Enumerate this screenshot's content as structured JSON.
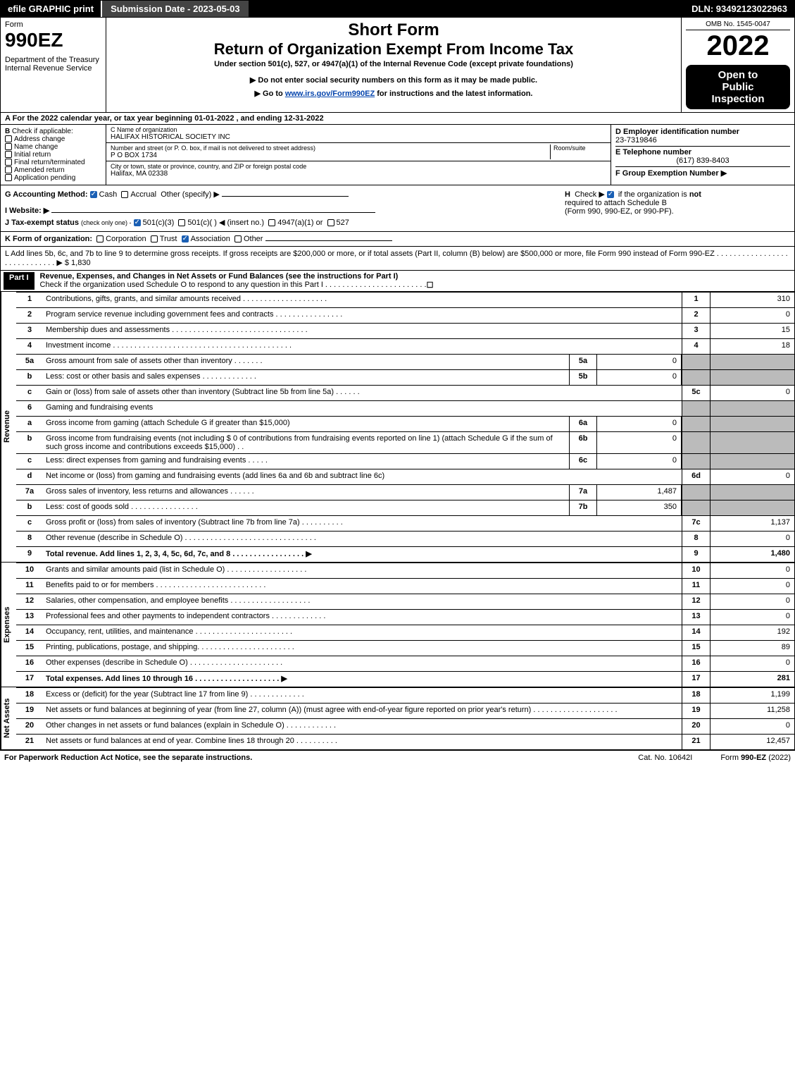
{
  "topbar": {
    "efile": "efile GRAPHIC print",
    "submission": "Submission Date - 2023-05-03",
    "dln": "DLN: 93492123022963"
  },
  "header": {
    "form_label": "Form",
    "form_no": "990EZ",
    "dept1": "Department of the Treasury",
    "dept2": "Internal Revenue Service",
    "short_form": "Short Form",
    "return_title": "Return of Organization Exempt From Income Tax",
    "subtitle": "Under section 501(c), 527, or 4947(a)(1) of the Internal Revenue Code (except private foundations)",
    "note1": "▶ Do not enter social security numbers on this form as it may be made public.",
    "note2_pre": "▶ Go to ",
    "note2_link": "www.irs.gov/Form990EZ",
    "note2_post": " for instructions and the latest information.",
    "omb": "OMB No. 1545-0047",
    "year": "2022",
    "open1": "Open to",
    "open2": "Public",
    "open3": "Inspection"
  },
  "section_a": "A  For the 2022 calendar year, or tax year beginning 01-01-2022  , and ending 12-31-2022",
  "section_b": {
    "label": "B",
    "check_if": "Check if applicable:",
    "items": [
      "Address change",
      "Name change",
      "Initial return",
      "Final return/terminated",
      "Amended return",
      "Application pending"
    ]
  },
  "section_c": {
    "c_label": "C Name of organization",
    "org_name": "HALIFAX HISTORICAL SOCIETY INC",
    "street_label": "Number and street (or P. O. box, if mail is not delivered to street address)",
    "room_label": "Room/suite",
    "street": "P O BOX 1734",
    "city_label": "City or town, state or province, country, and ZIP or foreign postal code",
    "city": "Halifax, MA  02338"
  },
  "section_d": {
    "d_label": "D Employer identification number",
    "ein": "23-7319846",
    "e_label": "E Telephone number",
    "phone": "(617) 839-8403",
    "f_label": "F Group Exemption Number  ▶"
  },
  "method": {
    "g_label": "G Accounting Method:",
    "cash": "Cash",
    "accrual": "Accrual",
    "other": "Other (specify) ▶",
    "i_label": "I Website: ▶",
    "j_label": "J Tax-exempt status",
    "j_note": "(check only one) -",
    "j_501c3": "501(c)(3)",
    "j_501c": "501(c)(  ) ◀ (insert no.)",
    "j_4947": "4947(a)(1) or",
    "j_527": "527",
    "h_label": "H",
    "h_text1": "Check ▶",
    "h_text2": "if the organization is",
    "h_not": "not",
    "h_text3": "required to attach Schedule B",
    "h_text4": "(Form 990, 990-EZ, or 990-PF)."
  },
  "k_row": {
    "label": "K Form of organization:",
    "corp": "Corporation",
    "trust": "Trust",
    "assoc": "Association",
    "other": "Other"
  },
  "l_row": {
    "text": "L Add lines 5b, 6c, and 7b to line 9 to determine gross receipts. If gross receipts are $200,000 or more, or if total assets (Part II, column (B) below) are $500,000 or more, file Form 990 instead of Form 990-EZ  . . . . . . . . . . . . . . . . . . . . . . . . . . . . .  ▶ $ 1,830"
  },
  "part1": {
    "label": "Part I",
    "title": "Revenue, Expenses, and Changes in Net Assets or Fund Balances (see the instructions for Part I)",
    "check_note": "Check if the organization used Schedule O to respond to any question in this Part I . . . . . . . . . . . . . . . . . . . . . . . .",
    "check_val": "☐"
  },
  "vlabels": {
    "revenue": "Revenue",
    "expenses": "Expenses",
    "netassets": "Net Assets"
  },
  "revenue": [
    {
      "n": "1",
      "desc": "Contributions, gifts, grants, and similar amounts received  . . . . . . . . . . . . . . . . . . . .",
      "ref": "1",
      "val": "310"
    },
    {
      "n": "2",
      "desc": "Program service revenue including government fees and contracts  . . . . . . . . . . . . . . . .",
      "ref": "2",
      "val": "0"
    },
    {
      "n": "3",
      "desc": "Membership dues and assessments  . . . . . . . . . . . . . . . . . . . . . . . . . . . . . . . .",
      "ref": "3",
      "val": "15"
    },
    {
      "n": "4",
      "desc": "Investment income  . . . . . . . . . . . . . . . . . . . . . . . . . . . . . . . . . . . . . . . . . .",
      "ref": "4",
      "val": "18"
    },
    {
      "n": "5a",
      "desc": "Gross amount from sale of assets other than inventory  . . . . . . .",
      "sub": "5a",
      "subval": "0",
      "shade": true
    },
    {
      "n": "b",
      "desc": "Less: cost or other basis and sales expenses  . . . . . . . . . . . . .",
      "sub": "5b",
      "subval": "0",
      "shade": true
    },
    {
      "n": "c",
      "desc": "Gain or (loss) from sale of assets other than inventory (Subtract line 5b from line 5a)  . . . . . .",
      "ref": "5c",
      "val": "0"
    },
    {
      "n": "6",
      "desc": "Gaming and fundraising events",
      "shade": true
    },
    {
      "n": "a",
      "desc": "Gross income from gaming (attach Schedule G if greater than $15,000)",
      "sub": "6a",
      "subval": "0",
      "shade": true
    },
    {
      "n": "b",
      "desc": "Gross income from fundraising events (not including $  0           of contributions from fundraising events reported on line 1) (attach Schedule G if the sum of such gross income and contributions exceeds $15,000)    .  .",
      "sub": "6b",
      "subval": "0",
      "shade": true
    },
    {
      "n": "c",
      "desc": "Less: direct expenses from gaming and fundraising events  . . . . .",
      "sub": "6c",
      "subval": "0",
      "shade": true
    },
    {
      "n": "d",
      "desc": "Net income or (loss) from gaming and fundraising events (add lines 6a and 6b and subtract line 6c)",
      "ref": "6d",
      "val": "0"
    },
    {
      "n": "7a",
      "desc": "Gross sales of inventory, less returns and allowances  . . . . . .",
      "sub": "7a",
      "subval": "1,487",
      "shade": true
    },
    {
      "n": "b",
      "desc": "Less: cost of goods sold         .  .  .  .  .  .  .  .  .  .  .  .  .  .  .  .",
      "sub": "7b",
      "subval": "350",
      "shade": true
    },
    {
      "n": "c",
      "desc": "Gross profit or (loss) from sales of inventory (Subtract line 7b from line 7a)  . . . . . . . . . .",
      "ref": "7c",
      "val": "1,137"
    },
    {
      "n": "8",
      "desc": "Other revenue (describe in Schedule O)  . . . . . . . . . . . . . . . . . . . . . . . . . . . . . . .",
      "ref": "8",
      "val": "0"
    },
    {
      "n": "9",
      "desc": "Total revenue. Add lines 1, 2, 3, 4, 5c, 6d, 7c, and 8   .  .  .  .  .  .  .  .  .  .  .  .  .  .  .  .  .  ▶",
      "ref": "9",
      "val": "1,480",
      "bold": true
    }
  ],
  "expenses": [
    {
      "n": "10",
      "desc": "Grants and similar amounts paid (list in Schedule O)  .  .  .  .  .  .  .  .  .  .  .  .  .  .  .  .  .  .  .",
      "ref": "10",
      "val": "0"
    },
    {
      "n": "11",
      "desc": "Benefits paid to or for members       .  .  .  .  .  .  .  .  .  .  .  .  .  .  .  .  .  .  .  .  .  .  .  .  .  .",
      "ref": "11",
      "val": "0"
    },
    {
      "n": "12",
      "desc": "Salaries, other compensation, and employee benefits .  .  .  .  .  .  .  .  .  .  .  .  .  .  .  .  .  .  .",
      "ref": "12",
      "val": "0"
    },
    {
      "n": "13",
      "desc": "Professional fees and other payments to independent contractors  .  .  .  .  .  .  .  .  .  .  .  .  .",
      "ref": "13",
      "val": "0"
    },
    {
      "n": "14",
      "desc": "Occupancy, rent, utilities, and maintenance .  .  .  .  .  .  .  .  .  .  .  .  .  .  .  .  .  .  .  .  .  .  .",
      "ref": "14",
      "val": "192"
    },
    {
      "n": "15",
      "desc": "Printing, publications, postage, and shipping.  .  .  .  .  .  .  .  .  .  .  .  .  .  .  .  .  .  .  .  .  .  .",
      "ref": "15",
      "val": "89"
    },
    {
      "n": "16",
      "desc": "Other expenses (describe in Schedule O)     .  .  .  .  .  .  .  .  .  .  .  .  .  .  .  .  .  .  .  .  .  .",
      "ref": "16",
      "val": "0"
    },
    {
      "n": "17",
      "desc": "Total expenses. Add lines 10 through 16      .  .  .  .  .  .  .  .  .  .  .  .  .  .  .  .  .  .  .  .  ▶",
      "ref": "17",
      "val": "281",
      "bold": true
    }
  ],
  "netassets": [
    {
      "n": "18",
      "desc": "Excess or (deficit) for the year (Subtract line 17 from line 9)        .  .  .  .  .  .  .  .  .  .  .  .  .",
      "ref": "18",
      "val": "1,199"
    },
    {
      "n": "19",
      "desc": "Net assets or fund balances at beginning of year (from line 27, column (A)) (must agree with end-of-year figure reported on prior year's return) .  .  .  .  .  .  .  .  .  .  .  .  .  .  .  .  .  .  .  .",
      "ref": "19",
      "val": "11,258"
    },
    {
      "n": "20",
      "desc": "Other changes in net assets or fund balances (explain in Schedule O) .  .  .  .  .  .  .  .  .  .  .  .",
      "ref": "20",
      "val": "0"
    },
    {
      "n": "21",
      "desc": "Net assets or fund balances at end of year. Combine lines 18 through 20 .  .  .  .  .  .  .  .  .  .",
      "ref": "21",
      "val": "12,457"
    }
  ],
  "footer": {
    "left": "For Paperwork Reduction Act Notice, see the separate instructions.",
    "mid": "Cat. No. 10642I",
    "right_pre": "Form ",
    "right_bold": "990-EZ",
    "right_post": " (2022)"
  },
  "colors": {
    "black": "#000000",
    "white": "#ffffff",
    "grayShade": "#bbbbbb",
    "checkBlue": "#1a5fb4",
    "linkBlue": "#0645ad",
    "darkGray": "#444444"
  }
}
